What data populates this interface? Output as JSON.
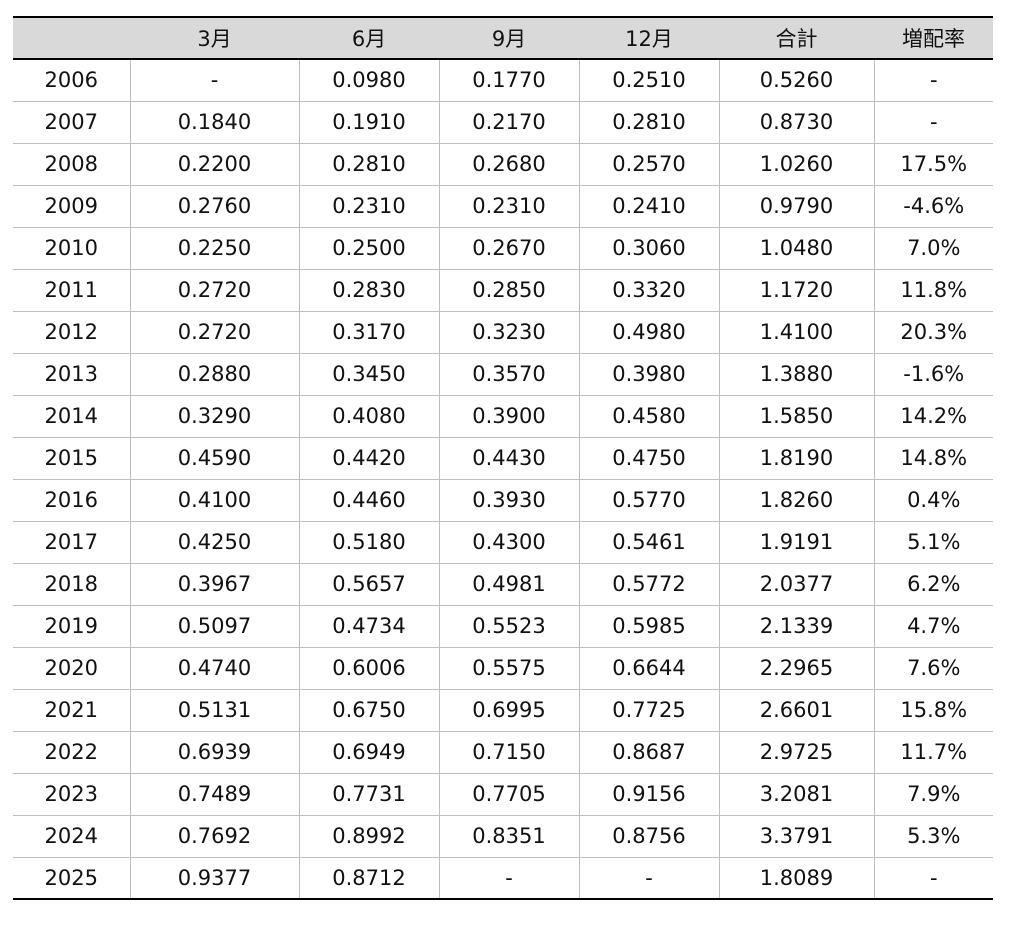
{
  "table": {
    "headers": [
      "",
      "3月",
      "6月",
      "9月",
      "12月",
      "合計",
      "増配率"
    ],
    "rows": [
      [
        "2006",
        "-",
        "0.0980",
        "0.1770",
        "0.2510",
        "0.5260",
        "-"
      ],
      [
        "2007",
        "0.1840",
        "0.1910",
        "0.2170",
        "0.2810",
        "0.8730",
        "-"
      ],
      [
        "2008",
        "0.2200",
        "0.2810",
        "0.2680",
        "0.2570",
        "1.0260",
        "17.5%"
      ],
      [
        "2009",
        "0.2760",
        "0.2310",
        "0.2310",
        "0.2410",
        "0.9790",
        "-4.6%"
      ],
      [
        "2010",
        "0.2250",
        "0.2500",
        "0.2670",
        "0.3060",
        "1.0480",
        "7.0%"
      ],
      [
        "2011",
        "0.2720",
        "0.2830",
        "0.2850",
        "0.3320",
        "1.1720",
        "11.8%"
      ],
      [
        "2012",
        "0.2720",
        "0.3170",
        "0.3230",
        "0.4980",
        "1.4100",
        "20.3%"
      ],
      [
        "2013",
        "0.2880",
        "0.3450",
        "0.3570",
        "0.3980",
        "1.3880",
        "-1.6%"
      ],
      [
        "2014",
        "0.3290",
        "0.4080",
        "0.3900",
        "0.4580",
        "1.5850",
        "14.2%"
      ],
      [
        "2015",
        "0.4590",
        "0.4420",
        "0.4430",
        "0.4750",
        "1.8190",
        "14.8%"
      ],
      [
        "2016",
        "0.4100",
        "0.4460",
        "0.3930",
        "0.5770",
        "1.8260",
        "0.4%"
      ],
      [
        "2017",
        "0.4250",
        "0.5180",
        "0.4300",
        "0.5461",
        "1.9191",
        "5.1%"
      ],
      [
        "2018",
        "0.3967",
        "0.5657",
        "0.4981",
        "0.5772",
        "2.0377",
        "6.2%"
      ],
      [
        "2019",
        "0.5097",
        "0.4734",
        "0.5523",
        "0.5985",
        "2.1339",
        "4.7%"
      ],
      [
        "2020",
        "0.4740",
        "0.6006",
        "0.5575",
        "0.6644",
        "2.2965",
        "7.6%"
      ],
      [
        "2021",
        "0.5131",
        "0.6750",
        "0.6995",
        "0.7725",
        "2.6601",
        "15.8%"
      ],
      [
        "2022",
        "0.6939",
        "0.6949",
        "0.7150",
        "0.8687",
        "2.9725",
        "11.7%"
      ],
      [
        "2023",
        "0.7489",
        "0.7731",
        "0.7705",
        "0.9156",
        "3.2081",
        "7.9%"
      ],
      [
        "2024",
        "0.7692",
        "0.8992",
        "0.8351",
        "0.8756",
        "3.3791",
        "5.3%"
      ],
      [
        "2025",
        "0.9377",
        "0.8712",
        "-",
        "-",
        "1.8089",
        "-"
      ]
    ]
  }
}
